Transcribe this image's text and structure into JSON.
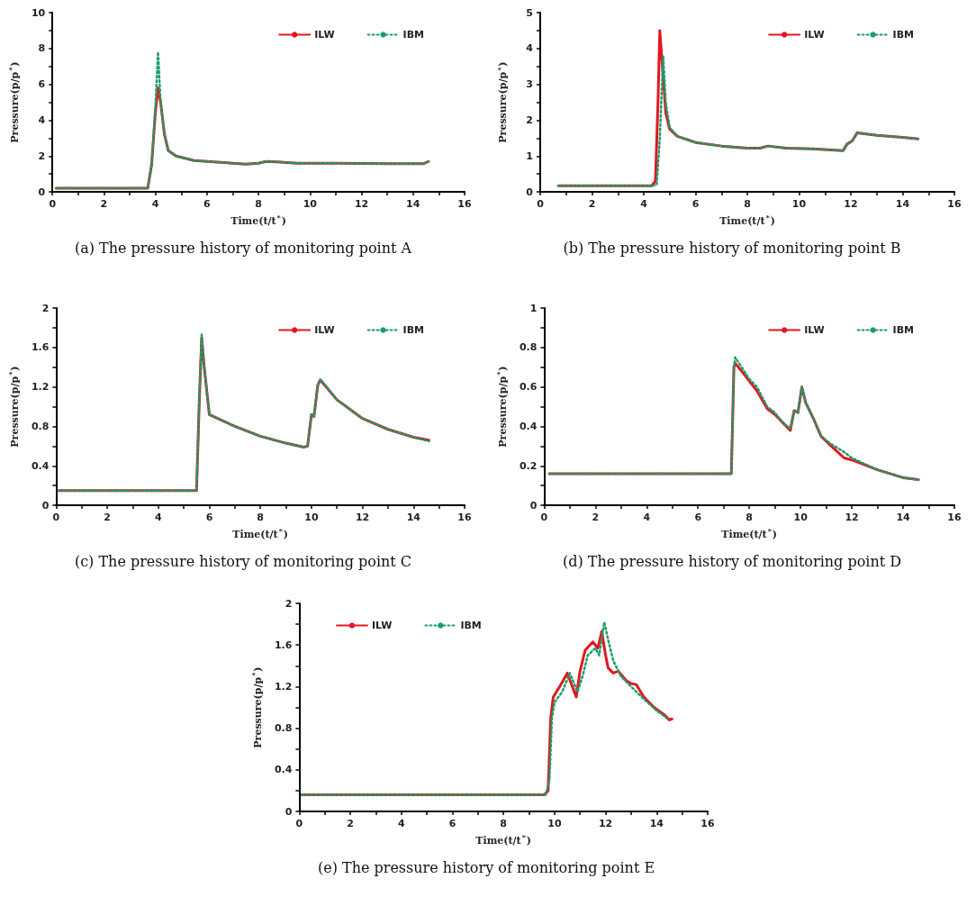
{
  "chart_data": [
    {
      "type": "line",
      "xlabel": "Time(t/t$^{*}$)",
      "ylabel": "Pressure(p/p$^{*}$)",
      "annotations": [
        "(a)  The pressure history of monitoring point A"
      ],
      "legend": "top right",
      "grid": false,
      "xlim": [
        0,
        16
      ],
      "xticks": [
        0,
        {
          "value": 1,
          "label": null
        },
        2,
        {
          "value": 3,
          "label": null
        },
        4,
        {
          "value": 5,
          "label": null
        },
        6,
        {
          "value": 7,
          "label": null
        },
        8,
        {
          "value": 9,
          "label": null
        },
        10,
        {
          "value": 11,
          "label": null
        },
        12,
        {
          "value": 13,
          "label": null
        },
        14,
        {
          "value": 15,
          "label": null
        },
        16
      ],
      "ylim": [
        0,
        10
      ],
      "yticks": [
        0,
        {
          "value": 1,
          "label": null
        },
        2,
        {
          "value": 3,
          "label": null
        },
        4,
        {
          "value": 5,
          "label": null
        },
        6,
        {
          "value": 7,
          "label": null
        },
        8,
        {
          "value": 9,
          "label": null
        },
        10
      ],
      "series": [
        {
          "name": "ILW",
          "color": "#e3171e",
          "line_style": "solid",
          "x": [
            0.15,
            3.7,
            3.85,
            4.0,
            4.1,
            4.2,
            4.35,
            4.5,
            4.8,
            5.5,
            6,
            7,
            7.5,
            8,
            8.3,
            8.7,
            9.5,
            11,
            13,
            14.4,
            14.6
          ],
          "values": [
            0.2,
            0.2,
            1.5,
            4.5,
            5.8,
            5.0,
            3.2,
            2.3,
            2.0,
            1.75,
            1.7,
            1.6,
            1.55,
            1.6,
            1.7,
            1.68,
            1.6,
            1.6,
            1.57,
            1.57,
            1.7
          ]
        },
        {
          "name": "IBM",
          "color": "#1b9e6b",
          "line_style": "dotted",
          "x": [
            0.15,
            3.7,
            3.85,
            4.0,
            4.1,
            4.2,
            4.35,
            4.5,
            4.8,
            5.5,
            6,
            7,
            7.5,
            8,
            8.3,
            8.7,
            9.5,
            11,
            13,
            14.4,
            14.6
          ],
          "values": [
            0.2,
            0.2,
            1.5,
            4.8,
            7.8,
            5.0,
            3.2,
            2.3,
            2.0,
            1.75,
            1.7,
            1.6,
            1.55,
            1.6,
            1.7,
            1.68,
            1.6,
            1.6,
            1.57,
            1.57,
            1.7
          ]
        }
      ]
    },
    {
      "type": "line",
      "xlabel": "Time(t/t$^{*}$)",
      "ylabel": "Pressure(p/p$^{*}$)",
      "annotations": [
        "(b)  The pressure history of monitoring point B"
      ],
      "legend": "top right",
      "grid": false,
      "xlim": [
        0,
        16
      ],
      "xticks": [
        0,
        {
          "value": 1,
          "label": null
        },
        2,
        {
          "value": 3,
          "label": null
        },
        4,
        {
          "value": 5,
          "label": null
        },
        6,
        {
          "value": 7,
          "label": null
        },
        8,
        {
          "value": 9,
          "label": null
        },
        10,
        {
          "value": 11,
          "label": null
        },
        12,
        {
          "value": 13,
          "label": null
        },
        14,
        {
          "value": 15,
          "label": null
        },
        16
      ],
      "ylim": [
        0,
        5
      ],
      "yticks": [
        0,
        {
          "value": 0.5,
          "label": null
        },
        1,
        {
          "value": 1.5,
          "label": null
        },
        2,
        {
          "value": 2.5,
          "label": null
        },
        3,
        {
          "value": 3.5,
          "label": null
        },
        4,
        {
          "value": 4.5,
          "label": null
        },
        5
      ],
      "series": [
        {
          "name": "ILW",
          "color": "#e3171e",
          "line_style": "solid",
          "x": [
            0.7,
            4.3,
            4.45,
            4.55,
            4.62,
            4.72,
            4.85,
            5.0,
            5.3,
            6,
            7,
            8,
            8.5,
            8.8,
            9.5,
            10.5,
            11.7,
            11.85,
            12.05,
            12.25,
            13,
            14,
            14.6
          ],
          "values": [
            0.17,
            0.17,
            0.3,
            2.5,
            4.5,
            3.5,
            2.2,
            1.75,
            1.55,
            1.38,
            1.28,
            1.22,
            1.22,
            1.28,
            1.22,
            1.2,
            1.15,
            1.33,
            1.42,
            1.65,
            1.58,
            1.52,
            1.48
          ]
        },
        {
          "name": "IBM",
          "color": "#1b9e6b",
          "line_style": "dotted",
          "x": [
            0.7,
            4.3,
            4.5,
            4.62,
            4.75,
            4.85,
            5.0,
            5.3,
            6,
            7,
            8,
            8.5,
            8.8,
            9.5,
            10.5,
            11.7,
            11.85,
            12.05,
            12.25,
            13,
            14,
            14.6
          ],
          "values": [
            0.17,
            0.17,
            0.2,
            1.5,
            3.8,
            2.5,
            1.8,
            1.55,
            1.38,
            1.28,
            1.22,
            1.22,
            1.28,
            1.22,
            1.2,
            1.15,
            1.33,
            1.42,
            1.65,
            1.58,
            1.52,
            1.48
          ]
        }
      ]
    },
    {
      "type": "line",
      "xlabel": "Time(t/t$^{*}$)",
      "ylabel": "Pressure(p/p$^{*}$)",
      "annotations": [
        "(c)  The pressure history of monitoring point C"
      ],
      "legend": "top right",
      "grid": false,
      "xlim": [
        0,
        16
      ],
      "xticks": [
        0,
        {
          "value": 1,
          "label": null
        },
        2,
        {
          "value": 3,
          "label": null
        },
        4,
        {
          "value": 5,
          "label": null
        },
        6,
        {
          "value": 7,
          "label": null
        },
        8,
        {
          "value": 9,
          "label": null
        },
        10,
        {
          "value": 11,
          "label": null
        },
        12,
        {
          "value": 13,
          "label": null
        },
        14,
        {
          "value": 15,
          "label": null
        },
        16
      ],
      "ylim": [
        0,
        2
      ],
      "yticks": [
        0,
        {
          "value": 0.2,
          "label": null
        },
        0.4,
        {
          "value": 0.6,
          "label": null
        },
        0.8,
        {
          "value": 1.0,
          "label": null
        },
        1.2,
        {
          "value": 1.4,
          "label": null
        },
        1.6,
        {
          "value": 1.8,
          "label": null
        },
        2
      ],
      "series": [
        {
          "name": "ILW",
          "color": "#e3171e",
          "line_style": "solid",
          "x": [
            0.1,
            5.5,
            5.6,
            5.7,
            5.8,
            6.0,
            7,
            8,
            9,
            9.7,
            9.85,
            10.0,
            10.1,
            10.25,
            10.35,
            11,
            12,
            13,
            14,
            14.6
          ],
          "values": [
            0.15,
            0.15,
            1.0,
            1.7,
            1.4,
            0.92,
            0.8,
            0.7,
            0.63,
            0.59,
            0.6,
            0.92,
            0.9,
            1.22,
            1.27,
            1.07,
            0.88,
            0.77,
            0.69,
            0.66
          ]
        },
        {
          "name": "IBM",
          "color": "#1b9e6b",
          "line_style": "dotted",
          "x": [
            0.1,
            5.5,
            5.6,
            5.7,
            5.8,
            6.0,
            7,
            8,
            9,
            9.7,
            9.85,
            10.0,
            10.1,
            10.25,
            10.35,
            11,
            12,
            13,
            14,
            14.6
          ],
          "values": [
            0.15,
            0.15,
            1.0,
            1.73,
            1.4,
            0.92,
            0.8,
            0.7,
            0.63,
            0.59,
            0.6,
            0.92,
            0.9,
            1.22,
            1.28,
            1.07,
            0.88,
            0.77,
            0.69,
            0.65
          ]
        }
      ]
    },
    {
      "type": "line",
      "xlabel": "Time(t/t$^{*}$)",
      "ylabel": "Pressure(p/p$^{*}$)",
      "annotations": [
        "(d)  The pressure history of monitoring point D"
      ],
      "legend": "top right",
      "grid": false,
      "xlim": [
        0,
        16
      ],
      "xticks": [
        0,
        {
          "value": 1,
          "label": null
        },
        2,
        {
          "value": 3,
          "label": null
        },
        4,
        {
          "value": 5,
          "label": null
        },
        6,
        {
          "value": 7,
          "label": null
        },
        8,
        {
          "value": 9,
          "label": null
        },
        10,
        {
          "value": 11,
          "label": null
        },
        12,
        {
          "value": 13,
          "label": null
        },
        14,
        {
          "value": 15,
          "label": null
        },
        16
      ],
      "ylim": [
        0,
        1
      ],
      "yticks": [
        0,
        {
          "value": 0.1,
          "label": null
        },
        0.2,
        {
          "value": 0.3,
          "label": null
        },
        0.4,
        {
          "value": 0.5,
          "label": null
        },
        0.6,
        {
          "value": 0.7,
          "label": null
        },
        0.8,
        {
          "value": 0.9,
          "label": null
        },
        1
      ],
      "series": [
        {
          "name": "ILW",
          "color": "#e3171e",
          "line_style": "solid",
          "x": [
            0.2,
            7.3,
            7.4,
            7.45,
            7.7,
            8,
            8.3,
            8.7,
            9,
            9.3,
            9.6,
            9.75,
            9.9,
            10.05,
            10.2,
            10.5,
            10.8,
            11.2,
            11.7,
            12,
            13,
            14,
            14.6
          ],
          "values": [
            0.16,
            0.16,
            0.7,
            0.72,
            0.68,
            0.63,
            0.58,
            0.49,
            0.46,
            0.42,
            0.38,
            0.48,
            0.47,
            0.6,
            0.52,
            0.44,
            0.35,
            0.3,
            0.24,
            0.23,
            0.18,
            0.14,
            0.13
          ]
        },
        {
          "name": "IBM",
          "color": "#1b9e6b",
          "line_style": "dotted",
          "x": [
            0.2,
            7.3,
            7.4,
            7.45,
            7.7,
            8,
            8.3,
            8.7,
            9,
            9.3,
            9.6,
            9.75,
            9.9,
            10.05,
            10.2,
            10.5,
            10.8,
            11.2,
            11.7,
            12,
            13,
            14,
            14.6
          ],
          "values": [
            0.16,
            0.16,
            0.7,
            0.75,
            0.7,
            0.64,
            0.6,
            0.5,
            0.47,
            0.42,
            0.39,
            0.48,
            0.47,
            0.6,
            0.52,
            0.44,
            0.35,
            0.31,
            0.27,
            0.24,
            0.18,
            0.14,
            0.13
          ]
        }
      ]
    },
    {
      "type": "line",
      "xlabel": "Time(t/t$^{*}$)",
      "ylabel": "Pressure(p/p$^{*}$)",
      "annotations": [
        "(e)  The pressure history of monitoring point E"
      ],
      "legend": "top left",
      "grid": false,
      "xlim": [
        0,
        16
      ],
      "xticks": [
        0,
        {
          "value": 1,
          "label": null
        },
        2,
        {
          "value": 3,
          "label": null
        },
        4,
        {
          "value": 5,
          "label": null
        },
        6,
        {
          "value": 7,
          "label": null
        },
        8,
        {
          "value": 9,
          "label": null
        },
        10,
        {
          "value": 11,
          "label": null
        },
        12,
        {
          "value": 13,
          "label": null
        },
        14,
        {
          "value": 15,
          "label": null
        },
        16
      ],
      "ylim": [
        0,
        2
      ],
      "yticks": [
        0,
        {
          "value": 0.2,
          "label": null
        },
        0.4,
        {
          "value": 0.6,
          "label": null
        },
        0.8,
        {
          "value": 1.0,
          "label": null
        },
        1.2,
        {
          "value": 1.4,
          "label": null
        },
        1.6,
        {
          "value": 1.8,
          "label": null
        },
        2
      ],
      "series": [
        {
          "name": "ILW",
          "color": "#e3171e",
          "line_style": "solid",
          "x": [
            0.1,
            9.6,
            9.75,
            9.85,
            9.95,
            10.2,
            10.5,
            10.7,
            10.85,
            11.0,
            11.2,
            11.5,
            11.7,
            11.85,
            12.0,
            12.1,
            12.3,
            12.5,
            12.8,
            13,
            13.2,
            13.5,
            13.9,
            14.3,
            14.5,
            14.6
          ],
          "values": [
            0.16,
            0.16,
            0.2,
            0.9,
            1.1,
            1.2,
            1.33,
            1.2,
            1.1,
            1.35,
            1.55,
            1.63,
            1.57,
            1.73,
            1.5,
            1.38,
            1.33,
            1.35,
            1.26,
            1.23,
            1.22,
            1.1,
            1.0,
            0.93,
            0.88,
            0.89
          ]
        },
        {
          "name": "IBM",
          "color": "#1b9e6b",
          "line_style": "dotted",
          "x": [
            0.1,
            9.65,
            9.8,
            9.9,
            10.0,
            10.3,
            10.6,
            10.9,
            11.1,
            11.3,
            11.6,
            11.75,
            11.95,
            12.1,
            12.3,
            12.6,
            13,
            13.5,
            14,
            14.5
          ],
          "values": [
            0.16,
            0.16,
            0.3,
            0.9,
            1.05,
            1.15,
            1.33,
            1.15,
            1.3,
            1.5,
            1.57,
            1.5,
            1.82,
            1.65,
            1.45,
            1.3,
            1.2,
            1.08,
            0.97,
            0.88
          ]
        }
      ]
    }
  ]
}
